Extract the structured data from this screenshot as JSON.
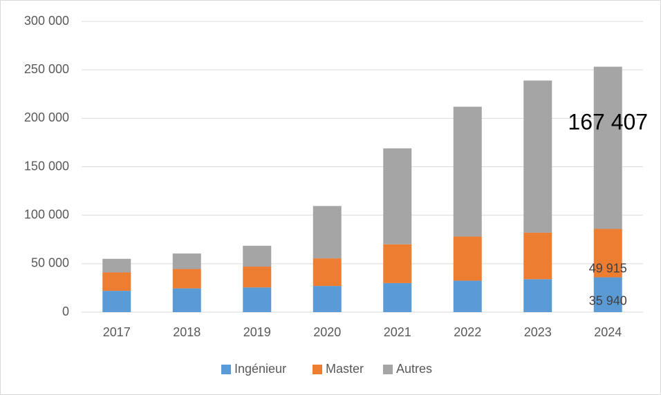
{
  "chart_data": {
    "type": "stacked_bar",
    "categories": [
      "2017",
      "2018",
      "2019",
      "2020",
      "2021",
      "2022",
      "2023",
      "2024"
    ],
    "series": [
      {
        "name": "Ingénieur",
        "color": "#5b9bd5",
        "values": [
          22000,
          24500,
          25500,
          27000,
          30000,
          32500,
          34000,
          35940
        ],
        "value_labels": [
          null,
          null,
          null,
          null,
          null,
          null,
          null,
          "35 940"
        ]
      },
      {
        "name": "Master",
        "color": "#ed7d31",
        "values": [
          19000,
          20000,
          21500,
          28500,
          40000,
          45500,
          48000,
          49915
        ],
        "value_labels": [
          null,
          null,
          null,
          null,
          null,
          null,
          null,
          "49 915"
        ]
      },
      {
        "name": "Autres",
        "color": "#a5a5a5",
        "values": [
          14000,
          16000,
          21500,
          54000,
          99000,
          134000,
          157000,
          167407
        ],
        "value_labels": [
          null,
          null,
          null,
          null,
          null,
          null,
          null,
          "167 407"
        ]
      }
    ],
    "ylim": [
      0,
      300000
    ],
    "yticks": [
      0,
      {
        "value": 50000,
        "label": "50 000"
      },
      {
        "value": 100000,
        "label": "100 000"
      },
      {
        "value": 150000,
        "label": "150 000"
      },
      {
        "value": 200000,
        "label": "200 000"
      },
      {
        "value": 250000,
        "label": "250 000"
      },
      {
        "value": 300000,
        "label": "300 000"
      }
    ],
    "grid": true,
    "legend": "bottom"
  }
}
